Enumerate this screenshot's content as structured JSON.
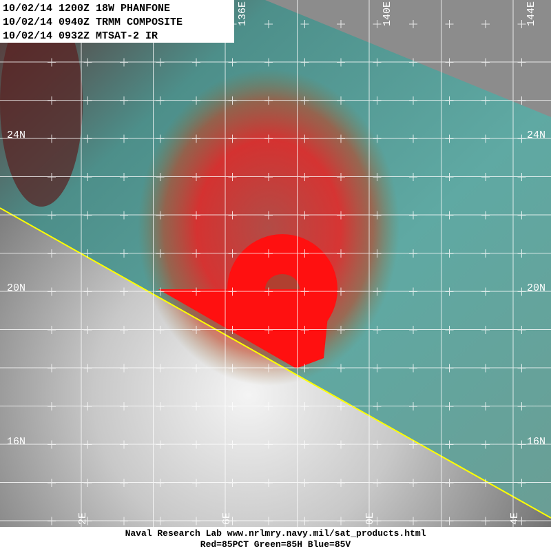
{
  "header": {
    "lines": [
      "10/02/14 1200Z 18W PHANFONE",
      "10/02/14 0940Z TRMM COMPOSITE",
      "10/02/14 0932Z MTSAT-2 IR"
    ]
  },
  "latitude_labels": {
    "left": [
      "24N",
      "20N"
    ],
    "right": [
      "24N",
      "20N",
      "16N"
    ],
    "left_bottom": "16N"
  },
  "longitude_labels": {
    "top": [
      "136E",
      "140E",
      "144E"
    ],
    "bottom": [
      "2E",
      "6E",
      "0E",
      "4E"
    ]
  },
  "footer": {
    "lines": [
      "Naval Research Lab  www.nrlmry.navy.mil/sat_products.html",
      "Red=85PCT  Green=85H  Blue=85V"
    ]
  }
}
